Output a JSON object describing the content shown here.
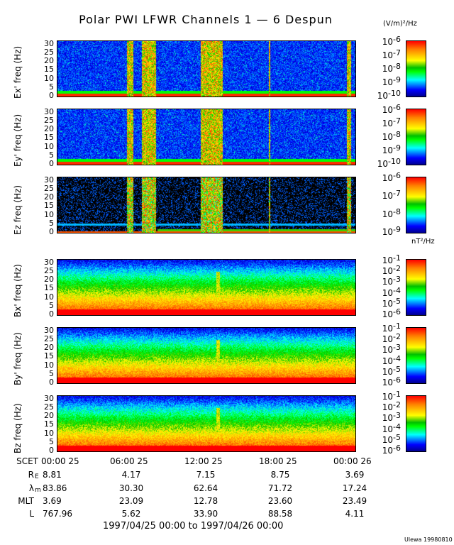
{
  "title": "Polar PWI LFWR Channels 1 — 6 Despun",
  "units": {
    "electric": "(V/m)²/Hz",
    "magnetic": "nT²/Hz"
  },
  "credit": "Ulewa 19980810",
  "date_range": "1997/04/25 00:00 to 1997/04/26 00:00",
  "chart_data": {
    "type": "heatmap",
    "title": "Polar PWI LFWR Channels 1 — 6 Despun",
    "xlabel": "SCET",
    "xlim_hours": [
      0,
      24
    ],
    "x_ticks": [
      "00:00 25",
      "06:00 25",
      "12:00 25",
      "18:00 25",
      "00:00 26"
    ],
    "y_ticks": [
      "0",
      "5",
      "10",
      "15",
      "20",
      "25",
      "30"
    ],
    "ylim": [
      0,
      32
    ],
    "panels": [
      {
        "ylabel": "Ex' freq (Hz)",
        "kind": "E",
        "cbar_exp": [
          "-6",
          "-7",
          "-8",
          "-9",
          "-10"
        ],
        "clim": [
          1e-10,
          1e-06
        ]
      },
      {
        "ylabel": "Ey' freq (Hz)",
        "kind": "E",
        "cbar_exp": [
          "-6",
          "-7",
          "-8",
          "-9",
          "-10"
        ],
        "clim": [
          1e-10,
          1e-06
        ]
      },
      {
        "ylabel": "Ez freq (Hz)",
        "kind": "Ez",
        "cbar_exp": [
          "-6",
          "-7",
          "-8",
          "-9"
        ],
        "clim": [
          1e-09,
          1e-06
        ]
      },
      {
        "ylabel": "Bx' freq (Hz)",
        "kind": "B",
        "cbar_exp": [
          "-1",
          "-2",
          "-3",
          "-4",
          "-5",
          "-6"
        ],
        "clim": [
          1e-06,
          0.1
        ]
      },
      {
        "ylabel": "By' freq (Hz)",
        "kind": "B",
        "cbar_exp": [
          "-1",
          "-2",
          "-3",
          "-4",
          "-5",
          "-6"
        ],
        "clim": [
          1e-06,
          0.1
        ]
      },
      {
        "ylabel": "Bz freq (Hz)",
        "kind": "B",
        "cbar_exp": [
          "-1",
          "-2",
          "-3",
          "-4",
          "-5",
          "-6"
        ],
        "clim": [
          1e-06,
          0.1
        ]
      }
    ],
    "e_bursts_hours": [
      [
        5.6,
        6.1
      ],
      [
        6.8,
        7.9
      ],
      [
        11.5,
        13.3
      ],
      [
        17.0,
        17.1
      ],
      [
        23.3,
        23.6
      ]
    ],
    "b_spike_hour": 12.9
  },
  "ephemeris": {
    "labels": [
      "SCET",
      "R",
      "λ",
      "MLT",
      "L"
    ],
    "subs": [
      "",
      "E",
      "m",
      "",
      ""
    ],
    "rows": [
      [
        "00:00 25",
        "06:00 25",
        "12:00 25",
        "18:00 25",
        "00:00 26"
      ],
      [
        "8.81",
        "4.17",
        "7.15",
        "8.75",
        "3.69"
      ],
      [
        "83.86",
        "30.30",
        "62.64",
        "71.72",
        "17.24"
      ],
      [
        "3.69",
        "23.09",
        "12.78",
        "23.60",
        "23.49"
      ],
      [
        "767.96",
        "5.62",
        "33.90",
        "88.58",
        "4.11"
      ]
    ]
  }
}
